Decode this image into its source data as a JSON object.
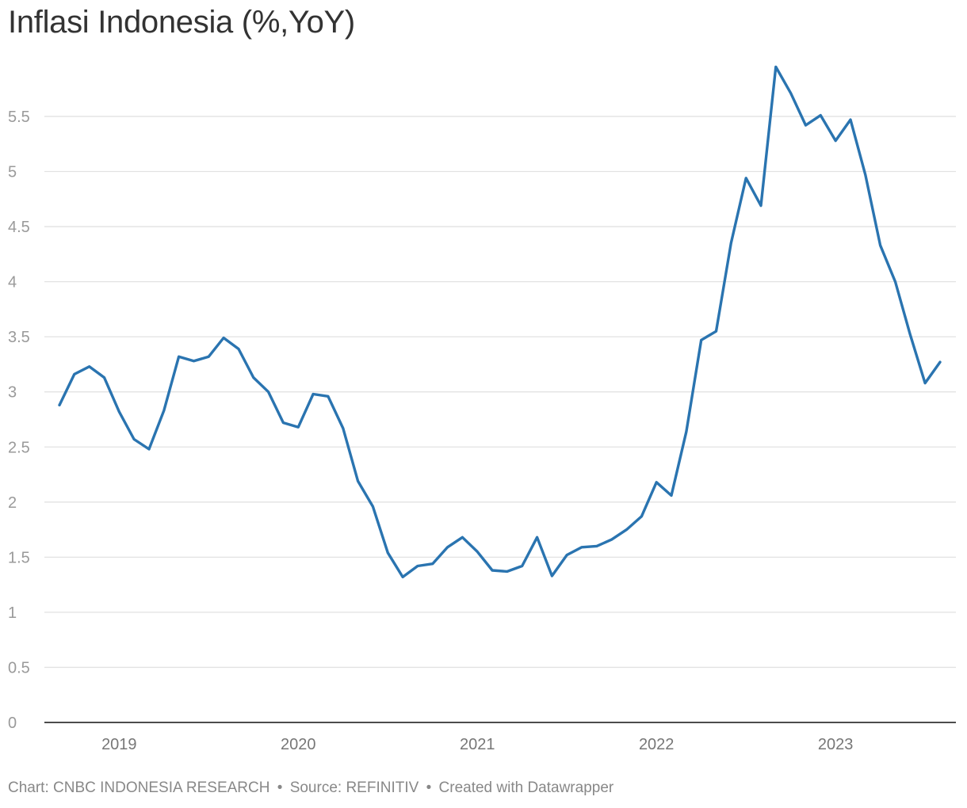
{
  "title": "Inflasi Indonesia (%,YoY)",
  "footer": {
    "chart": "Chart: CNBC INDONESIA RESEARCH",
    "source": "Source: REFINITIV",
    "created": "Created with Datawrapper",
    "separator": "•"
  },
  "colors": {
    "line": "#2a74b0",
    "grid": "#e2e2e2",
    "baseline": "#333333",
    "tick_text": "#9a9a9a",
    "title": "#333333"
  },
  "chart_data": {
    "type": "line",
    "title": "Inflasi Indonesia (%,YoY)",
    "xlabel": "",
    "ylabel": "",
    "ylim": [
      0,
      6
    ],
    "yticks": [
      0,
      0.5,
      1,
      1.5,
      2,
      2.5,
      3,
      3.5,
      4,
      4.5,
      5,
      5.5
    ],
    "ytick_labels": [
      "0",
      "0.5",
      "1",
      "1.5",
      "2",
      "2.5",
      "3",
      "3.5",
      "4",
      "4.5",
      "5",
      "5.5"
    ],
    "xtick_labels": [
      "2019",
      "2020",
      "2021",
      "2022",
      "2023"
    ],
    "x": [
      "2018-09",
      "2018-10",
      "2018-11",
      "2018-12",
      "2019-01",
      "2019-02",
      "2019-03",
      "2019-04",
      "2019-05",
      "2019-06",
      "2019-07",
      "2019-08",
      "2019-09",
      "2019-10",
      "2019-11",
      "2019-12",
      "2020-01",
      "2020-02",
      "2020-03",
      "2020-04",
      "2020-05",
      "2020-06",
      "2020-07",
      "2020-08",
      "2020-09",
      "2020-10",
      "2020-11",
      "2020-12",
      "2021-01",
      "2021-02",
      "2021-03",
      "2021-04",
      "2021-05",
      "2021-06",
      "2021-07",
      "2021-08",
      "2021-09",
      "2021-10",
      "2021-11",
      "2021-12",
      "2022-01",
      "2022-02",
      "2022-03",
      "2022-04",
      "2022-05",
      "2022-06",
      "2022-07",
      "2022-08",
      "2022-09",
      "2022-10",
      "2022-11",
      "2022-12",
      "2023-01",
      "2023-02",
      "2023-03",
      "2023-04",
      "2023-05",
      "2023-06",
      "2023-07",
      "2023-08"
    ],
    "values": [
      2.88,
      3.16,
      3.23,
      3.13,
      2.82,
      2.57,
      2.48,
      2.83,
      3.32,
      3.28,
      3.32,
      3.49,
      3.39,
      3.13,
      3.0,
      2.72,
      2.68,
      2.98,
      2.96,
      2.67,
      2.19,
      1.96,
      1.54,
      1.32,
      1.42,
      1.44,
      1.59,
      1.68,
      1.55,
      1.38,
      1.37,
      1.42,
      1.68,
      1.33,
      1.52,
      1.59,
      1.6,
      1.66,
      1.75,
      1.87,
      2.18,
      2.06,
      2.64,
      3.47,
      3.55,
      4.35,
      4.94,
      4.69,
      5.95,
      5.71,
      5.42,
      5.51,
      5.28,
      5.47,
      4.97,
      4.33,
      4.0,
      3.52,
      3.08,
      3.27
    ],
    "grid": true,
    "legend": "none"
  }
}
